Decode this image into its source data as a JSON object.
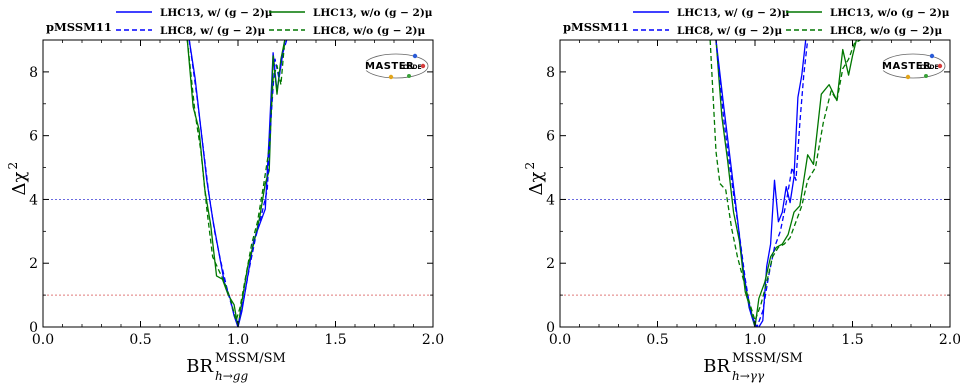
{
  "chart_data": [
    {
      "type": "line",
      "tag": "pMSSM11",
      "xlabel_main": "BR",
      "xlabel_sup": "MSSM/SM",
      "xlabel_sub": "h→gg",
      "ylabel_main": "Δχ",
      "ylabel_sup": "2",
      "xlim": [
        0.0,
        2.0
      ],
      "ylim": [
        0,
        9
      ],
      "xticks": [
        0.0,
        0.5,
        1.0,
        1.5,
        2.0
      ],
      "xtick_labels": [
        "0.0",
        "0.5",
        "1.0",
        "1.5",
        "2.0"
      ],
      "yticks": [
        0,
        2,
        4,
        6,
        8
      ],
      "ytick_labels": [
        "0",
        "2",
        "4",
        "6",
        "8"
      ],
      "hlines": [
        {
          "y": 4,
          "color": "#6a6ae0"
        },
        {
          "y": 1,
          "color": "#e07a7a"
        }
      ],
      "legend": [
        {
          "label": "LHC13, w/ (g − 2)μ",
          "color": "#0000ff",
          "dash": "solid"
        },
        {
          "label": "LHC13, w/o (g − 2)μ",
          "color": "#007700",
          "dash": "solid"
        },
        {
          "label": "LHC8, w/ (g − 2)μ",
          "color": "#0000ff",
          "dash": "dashed"
        },
        {
          "label": "LHC8, w/o (g − 2)μ",
          "color": "#007700",
          "dash": "dashed"
        }
      ],
      "series": [
        {
          "name": "LHC13, w/ (g − 2)μ",
          "color": "#0000ff",
          "dash": "solid",
          "x": [
            0.75,
            0.78,
            0.81,
            0.84,
            0.87,
            0.9,
            0.93,
            0.96,
            0.98,
            1.0,
            1.02,
            1.05,
            1.08,
            1.11,
            1.14,
            1.16,
            1.18,
            1.2,
            1.22,
            1.24
          ],
          "y": [
            9.0,
            7.8,
            6.2,
            4.6,
            3.4,
            2.4,
            1.4,
            0.9,
            0.35,
            0.0,
            0.5,
            1.6,
            2.7,
            3.2,
            3.7,
            6.0,
            8.6,
            7.4,
            8.2,
            9.0
          ]
        },
        {
          "name": "LHC13, w/o (g − 2)μ",
          "color": "#007700",
          "dash": "solid",
          "x": [
            0.74,
            0.77,
            0.8,
            0.83,
            0.86,
            0.89,
            0.92,
            0.95,
            0.98,
            1.0,
            1.02,
            1.05,
            1.08,
            1.11,
            1.14,
            1.16,
            1.18,
            1.2,
            1.22,
            1.24
          ],
          "y": [
            9.0,
            6.9,
            6.2,
            4.3,
            3.2,
            1.6,
            1.5,
            1.0,
            0.7,
            0.0,
            0.8,
            1.9,
            2.6,
            3.4,
            4.5,
            4.9,
            8.5,
            7.3,
            8.4,
            9.0
          ]
        },
        {
          "name": "LHC8, w/ (g − 2)μ",
          "color": "#0000ff",
          "dash": "dashed",
          "x": [
            0.75,
            0.79,
            0.82,
            0.85,
            0.88,
            0.91,
            0.94,
            0.97,
            1.0,
            1.03,
            1.06,
            1.09,
            1.12,
            1.15,
            1.17,
            1.19,
            1.21,
            1.23,
            1.25
          ],
          "y": [
            9.0,
            7.2,
            5.7,
            4.2,
            3.0,
            2.1,
            1.3,
            0.6,
            0.0,
            0.9,
            1.9,
            2.8,
            3.5,
            4.3,
            6.6,
            8.4,
            7.8,
            8.6,
            9.0
          ]
        },
        {
          "name": "LHC8, w/o (g − 2)μ",
          "color": "#007700",
          "dash": "dashed",
          "x": [
            0.74,
            0.78,
            0.81,
            0.84,
            0.87,
            0.9,
            0.93,
            0.96,
            0.99,
            1.01,
            1.04,
            1.07,
            1.1,
            1.13,
            1.16,
            1.18,
            1.2,
            1.22,
            1.24
          ],
          "y": [
            9.0,
            6.7,
            5.5,
            3.7,
            2.2,
            1.8,
            1.4,
            0.9,
            0.2,
            0.6,
            1.6,
            2.6,
            3.3,
            4.4,
            5.6,
            7.8,
            8.2,
            7.6,
            9.0
          ]
        }
      ]
    },
    {
      "type": "line",
      "tag": "pMSSM11",
      "xlabel_main": "BR",
      "xlabel_sup": "MSSM/SM",
      "xlabel_sub": "h→γγ",
      "ylabel_main": "Δχ",
      "ylabel_sup": "2",
      "xlim": [
        0.0,
        2.0
      ],
      "ylim": [
        0,
        9
      ],
      "xticks": [
        0.0,
        0.5,
        1.0,
        1.5,
        2.0
      ],
      "xtick_labels": [
        "0.0",
        "0.5",
        "1.0",
        "1.5",
        "2.0"
      ],
      "yticks": [
        0,
        2,
        4,
        6,
        8
      ],
      "ytick_labels": [
        "0",
        "2",
        "4",
        "6",
        "8"
      ],
      "hlines": [
        {
          "y": 4,
          "color": "#6a6ae0"
        },
        {
          "y": 1,
          "color": "#e07a7a"
        }
      ],
      "legend": [
        {
          "label": "LHC13, w/ (g − 2)μ",
          "color": "#0000ff",
          "dash": "solid"
        },
        {
          "label": "LHC13, w/o (g − 2)μ",
          "color": "#007700",
          "dash": "solid"
        },
        {
          "label": "LHC8, w/ (g − 2)μ",
          "color": "#0000ff",
          "dash": "dashed"
        },
        {
          "label": "LHC8, w/o (g − 2)μ",
          "color": "#007700",
          "dash": "dashed"
        }
      ],
      "series": [
        {
          "name": "LHC13, w/ (g − 2)μ",
          "color": "#0000ff",
          "dash": "solid",
          "x": [
            0.8,
            0.84,
            0.88,
            0.91,
            0.94,
            0.97,
            1.0,
            1.02,
            1.04,
            1.06,
            1.08,
            1.1,
            1.12,
            1.14,
            1.16,
            1.18,
            1.2,
            1.22,
            1.24,
            1.26
          ],
          "y": [
            9.0,
            6.9,
            4.9,
            3.4,
            1.8,
            0.6,
            0.0,
            0.0,
            0.2,
            1.9,
            2.6,
            4.6,
            3.3,
            3.6,
            4.4,
            3.9,
            4.7,
            7.2,
            7.9,
            9.0
          ]
        },
        {
          "name": "LHC13, w/o (g − 2)μ",
          "color": "#007700",
          "dash": "solid",
          "x": [
            0.8,
            0.83,
            0.86,
            0.89,
            0.92,
            0.95,
            0.98,
            1.0,
            1.02,
            1.05,
            1.08,
            1.11,
            1.14,
            1.17,
            1.2,
            1.23,
            1.27,
            1.3,
            1.34,
            1.38,
            1.42,
            1.45,
            1.48,
            1.5,
            1.52
          ],
          "y": [
            9.0,
            6.6,
            5.2,
            3.6,
            2.7,
            1.1,
            0.5,
            0.0,
            0.9,
            1.4,
            2.2,
            2.5,
            2.6,
            2.9,
            3.6,
            3.8,
            5.4,
            5.1,
            7.3,
            7.6,
            7.1,
            8.7,
            7.9,
            8.5,
            9.0
          ]
        },
        {
          "name": "LHC8, w/ (g − 2)μ",
          "color": "#0000ff",
          "dash": "dashed",
          "x": [
            0.8,
            0.84,
            0.88,
            0.92,
            0.95,
            0.98,
            1.01,
            1.04,
            1.07,
            1.1,
            1.13,
            1.16,
            1.19,
            1.21,
            1.23,
            1.25,
            1.27
          ],
          "y": [
            9.0,
            6.5,
            4.6,
            2.9,
            1.5,
            0.4,
            0.0,
            0.5,
            1.6,
            2.5,
            3.0,
            3.9,
            5.0,
            4.6,
            6.4,
            7.9,
            9.0
          ]
        },
        {
          "name": "LHC8, w/o (g − 2)μ",
          "color": "#007700",
          "dash": "dashed",
          "x": [
            0.77,
            0.8,
            0.82,
            0.85,
            0.88,
            0.91,
            0.94,
            0.97,
            1.0,
            1.03,
            1.06,
            1.09,
            1.12,
            1.15,
            1.18,
            1.21,
            1.24,
            1.27,
            1.31,
            1.35,
            1.39,
            1.42,
            1.45,
            1.48,
            1.51,
            1.54
          ],
          "y": [
            9.0,
            5.5,
            4.5,
            4.3,
            3.1,
            2.2,
            1.5,
            0.8,
            0.2,
            0.7,
            1.4,
            2.2,
            2.5,
            2.6,
            2.8,
            3.3,
            3.8,
            4.6,
            5.0,
            6.4,
            7.4,
            7.1,
            8.1,
            8.4,
            8.9,
            9.0
          ]
        }
      ]
    }
  ]
}
